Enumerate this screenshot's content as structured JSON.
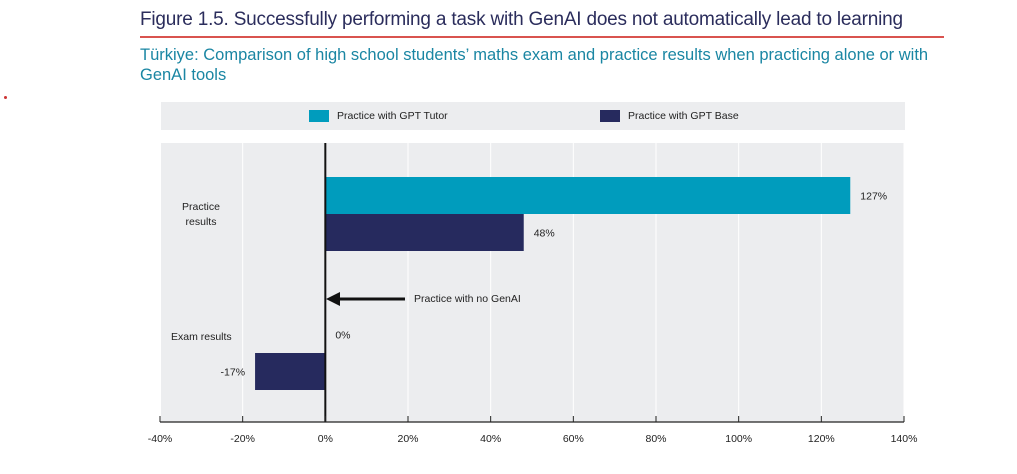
{
  "header": {
    "title": "Figure 1.5. Successfully performing a task with GenAI does not automatically lead to learning",
    "subtitle": "Türkiye: Comparison of high school students’ maths exam and practice results when practicing alone or with GenAI tools"
  },
  "chart_data": {
    "type": "bar",
    "orientation": "horizontal",
    "categories": [
      "Practice results",
      "Exam results"
    ],
    "series": [
      {
        "name": "Practice with GPT Tutor",
        "values": [
          127,
          0
        ],
        "labels": [
          "127%",
          "0%"
        ],
        "color": "#009cbd"
      },
      {
        "name": "Practice with GPT Base",
        "values": [
          48,
          -17
        ],
        "labels": [
          "48%",
          "-17%"
        ],
        "color": "#262a5e"
      }
    ],
    "xlim": [
      -40,
      140
    ],
    "xticks": [
      "-40%",
      "-20%",
      "0%",
      "20%",
      "40%",
      "60%",
      "80%",
      "100%",
      "120%",
      "140%"
    ],
    "xtick_values": [
      -40,
      -20,
      0,
      20,
      40,
      60,
      80,
      100,
      120,
      140
    ],
    "annotation": "Practice with no GenAI",
    "legend_position": "top",
    "grid": true,
    "background": "#ecedef"
  }
}
